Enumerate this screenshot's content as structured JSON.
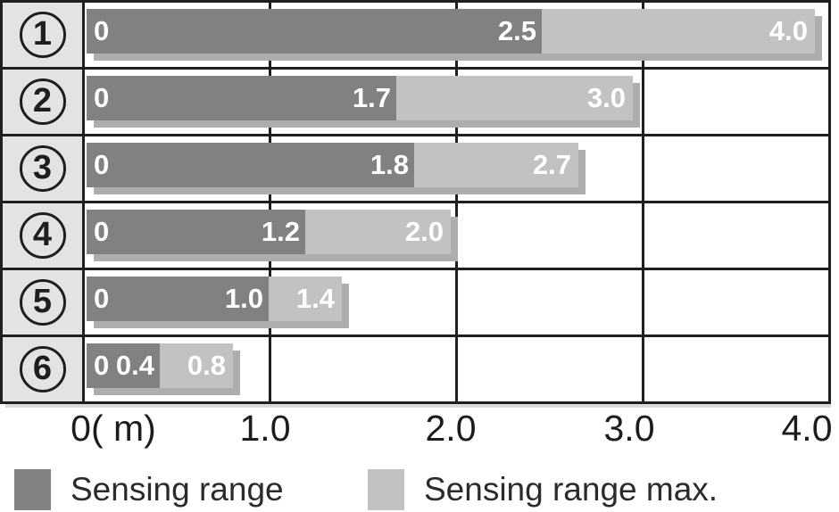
{
  "chart_data": {
    "type": "bar",
    "orientation": "horizontal",
    "categories": [
      "①",
      "②",
      "③",
      "④",
      "⑤",
      "⑥"
    ],
    "series": [
      {
        "name": "Sensing range",
        "values": [
          2.5,
          1.7,
          1.8,
          1.2,
          1.0,
          0.4
        ]
      },
      {
        "name": "Sensing range max.",
        "values": [
          4.0,
          3.0,
          2.7,
          2.0,
          1.4,
          0.8
        ]
      }
    ],
    "xlabel": "m",
    "x_tick_labels": [
      "0( m)",
      "1.0",
      "2.0",
      "3.0",
      "4.0"
    ],
    "xlim": [
      0,
      4.0
    ],
    "grid": true,
    "legend_position": "bottom",
    "bar_start_label": "0"
  },
  "rows": [
    {
      "category": "1",
      "zero_label": "0",
      "range": 2.5,
      "range_label": "2.5",
      "max": 4.0,
      "max_label": "4.0"
    },
    {
      "category": "2",
      "zero_label": "0",
      "range": 1.7,
      "range_label": "1.7",
      "max": 3.0,
      "max_label": "3.0"
    },
    {
      "category": "3",
      "zero_label": "0",
      "range": 1.8,
      "range_label": "1.8",
      "max": 2.7,
      "max_label": "2.7"
    },
    {
      "category": "4",
      "zero_label": "0",
      "range": 1.2,
      "range_label": "1.2",
      "max": 2.0,
      "max_label": "2.0"
    },
    {
      "category": "5",
      "zero_label": "0",
      "range": 1.0,
      "range_label": "1.0",
      "max": 1.4,
      "max_label": "1.4"
    },
    {
      "category": "6",
      "zero_label": "0",
      "range": 0.4,
      "range_label": "0.4",
      "max": 0.8,
      "max_label": "0.8"
    }
  ],
  "axis": {
    "ticks": [
      "0( m)",
      "1.0",
      "2.0",
      "3.0",
      "4.0"
    ]
  },
  "legend": {
    "items": [
      {
        "label": "Sensing range",
        "color": "#818181"
      },
      {
        "label": "Sensing range max.",
        "color": "#c2c2c2"
      }
    ]
  },
  "colors": {
    "sensing_range_bar": "#818181",
    "sensing_range_max_bar": "#c2c2c2",
    "bar_shadow": "#adadad",
    "category_cell_bg": "#e3e3e3",
    "border": "#1f1f1f",
    "bar_text": "#ffffff",
    "axis_text": "#1c1c1c"
  }
}
